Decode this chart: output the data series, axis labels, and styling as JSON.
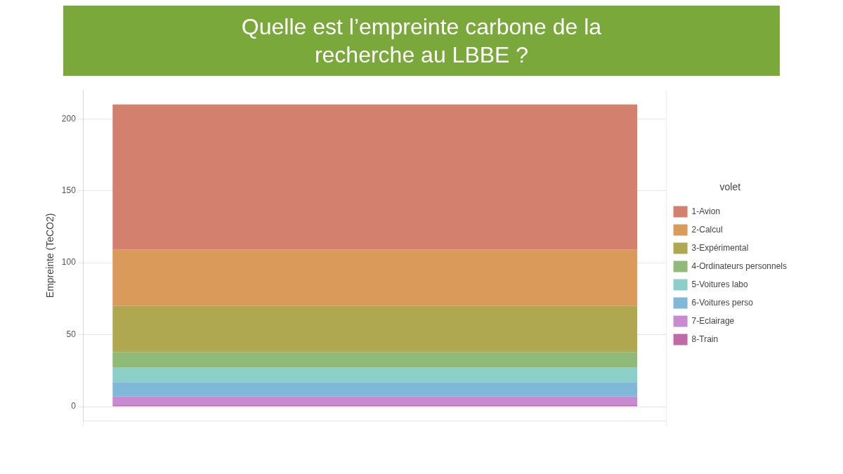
{
  "chart_data": {
    "type": "bar",
    "title": "Quelle est l’empreinte carbone de la recherche au LBBE ?",
    "ylabel": "Empreinte (TeCO2)",
    "legend_title": "volet",
    "categories": [
      null
    ],
    "stacked": true,
    "series": [
      {
        "name": "8-Train",
        "color": "#c06aa8",
        "values": [
          1
        ]
      },
      {
        "name": "7-Eclairage",
        "color": "#c88ad0",
        "values": [
          6
        ]
      },
      {
        "name": "6-Voitures perso",
        "color": "#80b8d8",
        "values": [
          10
        ]
      },
      {
        "name": "5-Voitures labo",
        "color": "#8ccfc8",
        "values": [
          10
        ]
      },
      {
        "name": "4-Ordinateurs personnels",
        "color": "#8fba78",
        "values": [
          11
        ]
      },
      {
        "name": "3-Expérimental",
        "color": "#b0a850",
        "values": [
          32
        ]
      },
      {
        "name": "2-Calcul",
        "color": "#d99a5a",
        "values": [
          39
        ]
      },
      {
        "name": "1-Avion",
        "color": "#d4806f",
        "values": [
          101
        ]
      }
    ],
    "ylim": [
      -10,
      220
    ],
    "yticks": [
      0,
      50,
      100,
      150,
      200
    ],
    "grid": true,
    "legend": "right"
  }
}
